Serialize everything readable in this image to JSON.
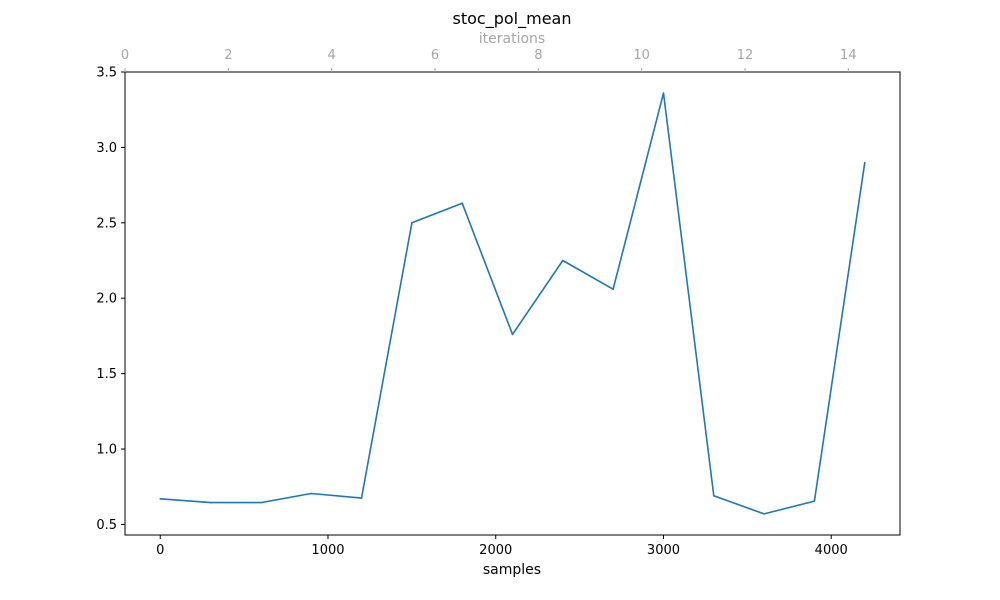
{
  "chart_data": {
    "type": "line",
    "title": "stoc_pol_mean",
    "xlabel": "samples",
    "ylabel": "",
    "top_xlabel": "iterations",
    "xlim": [
      -210,
      4410
    ],
    "ylim": [
      0.43,
      3.5
    ],
    "top_xlim": [
      0,
      15
    ],
    "x_ticks": [
      0,
      1000,
      2000,
      3000,
      4000
    ],
    "y_ticks": [
      "0.5",
      "1.0",
      "1.5",
      "2.0",
      "2.5",
      "3.0",
      "3.5"
    ],
    "top_x_ticks": [
      0,
      2,
      4,
      6,
      8,
      10,
      12,
      14
    ],
    "grid": false,
    "colors": {
      "line": "#1f77b4",
      "top_axis": "#a6a6a6"
    },
    "series": [
      {
        "x": [
          0,
          300,
          600,
          900,
          1200,
          1500,
          1800,
          2100,
          2400,
          2700,
          3000,
          3300,
          3600,
          3900,
          4200
        ],
        "y": [
          0.67,
          0.645,
          0.645,
          0.705,
          0.675,
          2.5,
          2.63,
          1.76,
          2.25,
          2.06,
          3.36,
          0.69,
          0.57,
          0.655,
          2.9
        ]
      }
    ]
  }
}
